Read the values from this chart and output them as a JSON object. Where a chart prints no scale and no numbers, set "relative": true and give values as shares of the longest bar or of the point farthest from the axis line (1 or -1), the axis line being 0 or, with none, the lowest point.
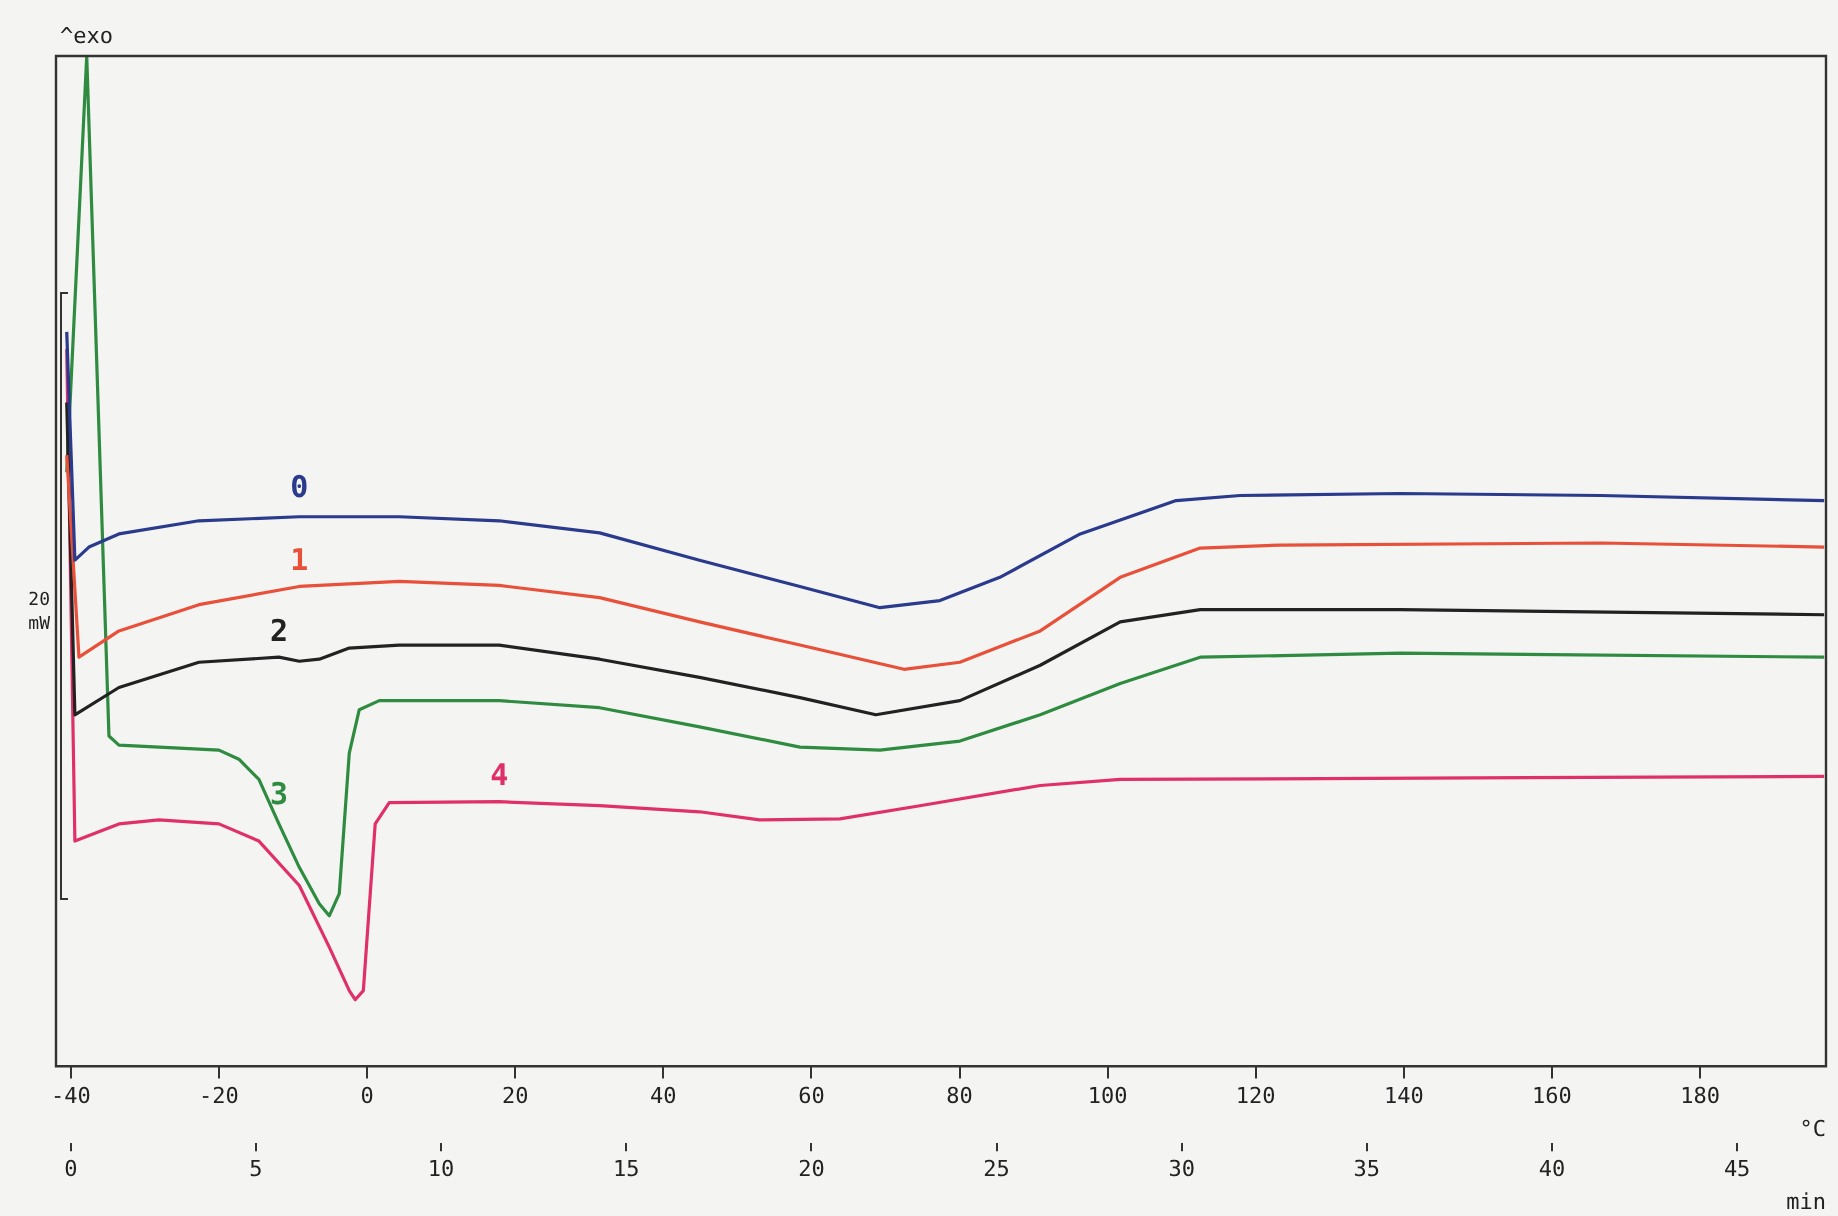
{
  "chart_data": {
    "type": "line",
    "relative": true,
    "xlabel": "min",
    "x2label": "°C",
    "annotations": [
      "^exo",
      "20 mW"
    ],
    "xlim": [
      -0.4,
      47.4
    ],
    "xticks": [
      0,
      5,
      10,
      15,
      20,
      25,
      30,
      35,
      40,
      45
    ],
    "x2lim": [
      -42,
      197
    ],
    "x2ticks": [
      -40,
      -20,
      0,
      20,
      40,
      60,
      80,
      100,
      120,
      140,
      160,
      180
    ],
    "grid": false,
    "legend": false,
    "marker": "none",
    "line_style": "solid",
    "tick_labels": "x",
    "series": [
      {
        "name": "0",
        "color": "#2a3a8c",
        "x": [
          -0.11,
          0.11,
          0.49,
          1.3,
          3.46,
          6.17,
          8.87,
          11.57,
          14.28,
          16.98,
          19.69,
          21.85,
          23.47,
          25.09,
          27.26,
          29.85,
          31.58,
          35.91,
          41.32,
          47.35
        ],
        "values": [
          0.727,
          0.501,
          0.514,
          0.527,
          0.54,
          0.544,
          0.544,
          0.54,
          0.528,
          0.501,
          0.475,
          0.454,
          0.461,
          0.484,
          0.527,
          0.56,
          0.565,
          0.567,
          0.565,
          0.56
        ]
      },
      {
        "name": "1",
        "color": "#e8503a",
        "x": [
          -0.11,
          0.22,
          1.3,
          3.46,
          6.17,
          8.87,
          11.57,
          14.28,
          16.98,
          19.69,
          22.5,
          24.01,
          26.18,
          28.34,
          30.5,
          32.67,
          41.32,
          47.35
        ],
        "values": [
          0.605,
          0.405,
          0.431,
          0.457,
          0.475,
          0.48,
          0.476,
          0.464,
          0.44,
          0.417,
          0.393,
          0.4,
          0.431,
          0.484,
          0.513,
          0.516,
          0.518,
          0.514
        ]
      },
      {
        "name": "2",
        "color": "#222222",
        "x": [
          -0.11,
          0.11,
          1.3,
          3.46,
          5.62,
          6.17,
          6.71,
          7.52,
          8.87,
          11.57,
          14.28,
          16.98,
          19.69,
          21.74,
          24.01,
          26.18,
          28.34,
          30.5,
          35.91,
          47.35
        ],
        "values": [
          0.657,
          0.348,
          0.375,
          0.4,
          0.405,
          0.401,
          0.403,
          0.414,
          0.417,
          0.417,
          0.403,
          0.385,
          0.365,
          0.348,
          0.362,
          0.397,
          0.44,
          0.452,
          0.452,
          0.447
        ]
      },
      {
        "name": "3",
        "color": "#2e8b40",
        "x": [
          -0.11,
          0.43,
          1.03,
          1.3,
          2.92,
          4.0,
          4.54,
          5.08,
          5.62,
          6.17,
          6.71,
          6.98,
          7.25,
          7.52,
          7.79,
          8.33,
          11.57,
          14.28,
          16.98,
          19.69,
          21.85,
          24.01,
          26.18,
          28.34,
          30.5,
          35.91,
          47.35
        ],
        "values": [
          0.588,
          1,
          0.327,
          0.318,
          0.315,
          0.313,
          0.304,
          0.284,
          0.24,
          0.197,
          0.161,
          0.149,
          0.171,
          0.31,
          0.353,
          0.362,
          0.362,
          0.355,
          0.336,
          0.316,
          0.313,
          0.322,
          0.348,
          0.379,
          0.405,
          0.409,
          0.405
        ]
      },
      {
        "name": "4",
        "color": "#e0306a",
        "x": [
          -0.11,
          0.11,
          1.3,
          2.38,
          4.0,
          5.08,
          6.17,
          6.98,
          7.52,
          7.68,
          7.9,
          8.22,
          8.6,
          11.57,
          14.28,
          16.98,
          18.6,
          20.77,
          22.93,
          26.18,
          28.34,
          47.35
        ],
        "values": [
          0.71,
          0.223,
          0.24,
          0.244,
          0.24,
          0.223,
          0.179,
          0.118,
          0.075,
          0.066,
          0.075,
          0.24,
          0.261,
          0.262,
          0.258,
          0.252,
          0.244,
          0.245,
          0.258,
          0.278,
          0.284,
          0.287
        ]
      }
    ]
  }
}
